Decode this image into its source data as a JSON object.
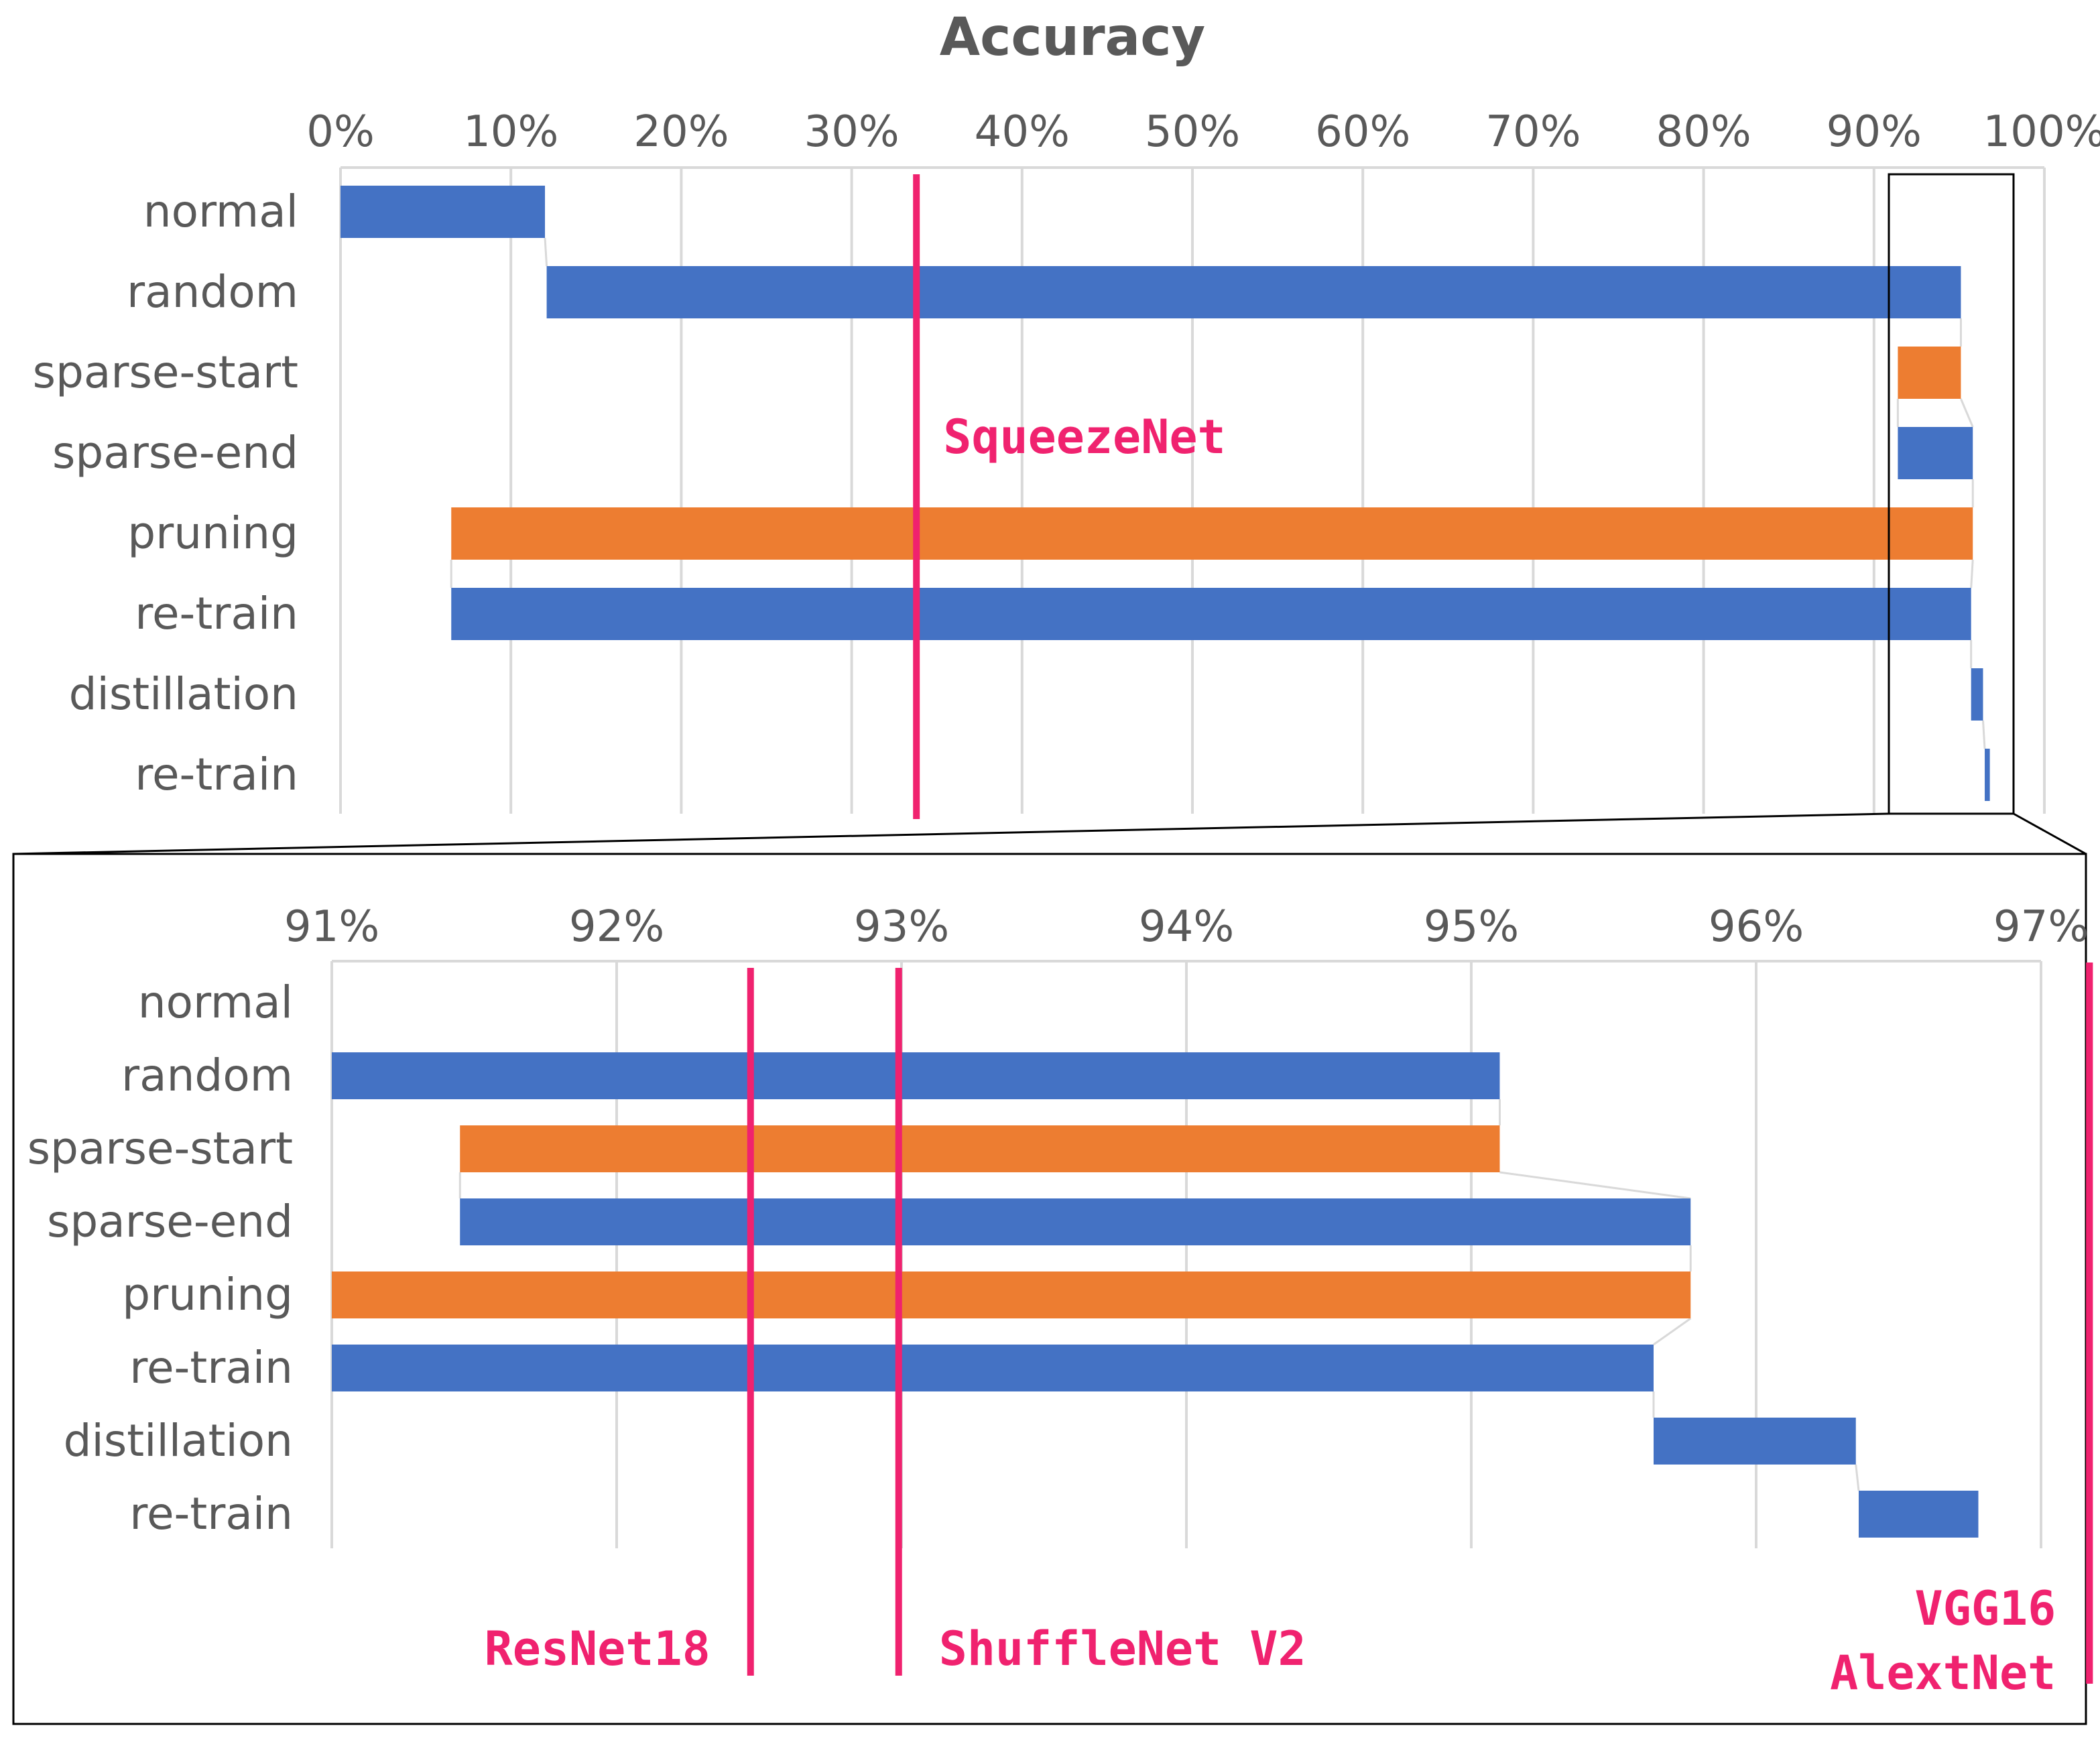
{
  "chart_data": [
    {
      "type": "waterfall-bar",
      "title": "Accuracy",
      "xlim": [
        0,
        100
      ],
      "tick_labels": [
        "0%",
        "10%",
        "20%",
        "30%",
        "40%",
        "50%",
        "60%",
        "70%",
        "80%",
        "90%",
        "100%"
      ],
      "categories": [
        "normal",
        "random",
        "sparse-start",
        "sparse-end",
        "pruning",
        "re-train",
        "distillation",
        "re-train"
      ],
      "bars": [
        {
          "from": 0,
          "to": 12,
          "color": "#4472c4"
        },
        {
          "from": 12.1,
          "to": 95.1,
          "color": "#4472c4"
        },
        {
          "from": 91.4,
          "to": 95.1,
          "color": "#ed7d31"
        },
        {
          "from": 91.4,
          "to": 95.8,
          "color": "#4472c4"
        },
        {
          "from": 6.5,
          "to": 95.8,
          "color": "#ed7d31"
        },
        {
          "from": 6.5,
          "to": 95.7,
          "color": "#4472c4"
        },
        {
          "from": 95.7,
          "to": 96.4,
          "color": "#4472c4"
        },
        {
          "from": 96.5,
          "to": 96.8,
          "color": "#4472c4"
        }
      ],
      "reference_lines": [
        {
          "label": "SqueezeNet",
          "value": 33.8
        }
      ]
    },
    {
      "type": "waterfall-bar",
      "title": "",
      "xlim": [
        91,
        97
      ],
      "tick_labels": [
        "91%",
        "92%",
        "93%",
        "94%",
        "95%",
        "96%",
        "97%"
      ],
      "categories": [
        "normal",
        "random",
        "sparse-start",
        "sparse-end",
        "pruning",
        "re-train",
        "distillation",
        "re-train"
      ],
      "bars": [
        {
          "from": 91.0,
          "to": 95.1,
          "color": "#4472c4"
        },
        {
          "from": 91.45,
          "to": 95.1,
          "color": "#ed7d31"
        },
        {
          "from": 91.45,
          "to": 95.77,
          "color": "#4472c4"
        },
        {
          "from": 91.0,
          "to": 95.77,
          "color": "#ed7d31"
        },
        {
          "from": 91.0,
          "to": 95.64,
          "color": "#4472c4"
        },
        {
          "from": 95.64,
          "to": 96.35,
          "color": "#4472c4"
        },
        {
          "from": 96.36,
          "to": 96.78,
          "color": "#4472c4"
        }
      ],
      "bar_rows": [
        1,
        2,
        3,
        4,
        5,
        6,
        7
      ],
      "reference_lines": [
        {
          "label": "ResNet18",
          "value": 92.47
        },
        {
          "label": "ShuffleNet V2",
          "value": 92.99
        },
        {
          "label": "VGG16",
          "value": 97.17
        },
        {
          "label": "AlextNet",
          "value": 97.17
        }
      ]
    }
  ]
}
